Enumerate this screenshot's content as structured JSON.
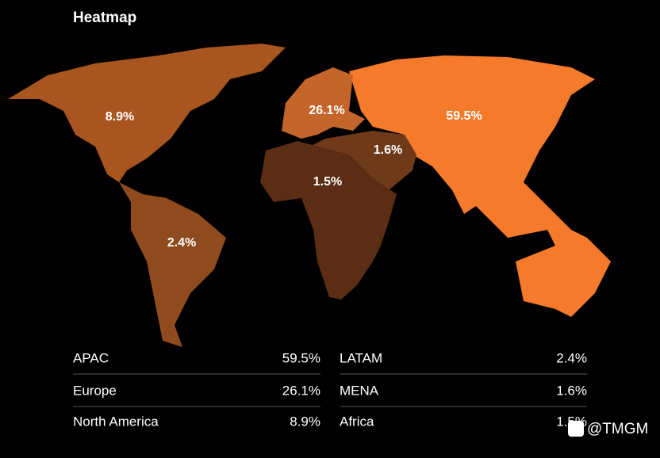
{
  "chart_data": {
    "type": "map",
    "title": "Heatmap",
    "categories": [
      "APAC",
      "Europe",
      "North America",
      "LATAM",
      "MENA",
      "Africa"
    ],
    "values": [
      59.5,
      26.1,
      8.9,
      2.4,
      1.6,
      1.5
    ],
    "value_labels": [
      "59.5%",
      "26.1%",
      "8.9%",
      "2.4%",
      "1.6%",
      "1.5%"
    ],
    "colors": [
      "#f57a2b",
      "#c4652b",
      "#a85520",
      "#8f4a1e",
      "#6f3a1a",
      "#5a2d14"
    ]
  },
  "watermark": "@TMGM"
}
